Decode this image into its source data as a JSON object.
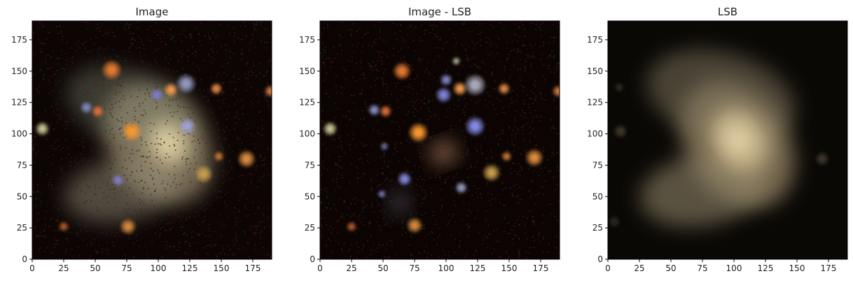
{
  "chart_data": [
    {
      "type": "image",
      "title": "Image",
      "xlim": [
        0,
        190
      ],
      "ylim": [
        0,
        190
      ],
      "xticks": [
        0,
        25,
        50,
        75,
        100,
        125,
        150,
        175
      ],
      "yticks": [
        0,
        25,
        50,
        75,
        100,
        125,
        150,
        175
      ],
      "description_colors": {
        "background": "#0c0504",
        "diffuse": "#b3a98a",
        "core": "#eadbaa"
      },
      "diffuse_components": [
        {
          "x": 100,
          "y": 92,
          "rx": 38,
          "ry": 52,
          "rotate": 35,
          "color": "#c9b88f",
          "opacity": 0.55
        },
        {
          "x": 80,
          "y": 120,
          "rx": 55,
          "ry": 30,
          "rotate": -20,
          "color": "#8f9a84",
          "opacity": 0.35
        },
        {
          "x": 70,
          "y": 55,
          "rx": 45,
          "ry": 25,
          "rotate": 10,
          "color": "#a59d84",
          "opacity": 0.45
        },
        {
          "x": 108,
          "y": 92,
          "rx": 15,
          "ry": 18,
          "rotate": 35,
          "color": "#f2e2b0",
          "opacity": 0.8
        }
      ],
      "sources": [
        {
          "x": 63,
          "y": 151,
          "r": 5,
          "color": "#e0782d"
        },
        {
          "x": 79,
          "y": 102,
          "r": 5,
          "color": "#f5962e"
        },
        {
          "x": 110,
          "y": 135,
          "r": 3.5,
          "color": "#f09a4c"
        },
        {
          "x": 99,
          "y": 131,
          "r": 3,
          "color": "#7b7ad8"
        },
        {
          "x": 122,
          "y": 140,
          "r": 5,
          "color": "#8f95b8"
        },
        {
          "x": 123,
          "y": 106,
          "r": 4,
          "color": "#9fa0d8"
        },
        {
          "x": 52,
          "y": 118,
          "r": 3,
          "color": "#e0703b"
        },
        {
          "x": 43,
          "y": 121,
          "r": 3,
          "color": "#7f88c0"
        },
        {
          "x": 8,
          "y": 104,
          "r": 3.5,
          "color": "#c9c48c"
        },
        {
          "x": 146,
          "y": 136,
          "r": 3,
          "color": "#e08a45"
        },
        {
          "x": 170,
          "y": 80,
          "r": 4.5,
          "color": "#d88a3d"
        },
        {
          "x": 136,
          "y": 68,
          "r": 4.5,
          "color": "#c49a4a"
        },
        {
          "x": 148,
          "y": 82,
          "r": 2.5,
          "color": "#c77a38"
        },
        {
          "x": 76,
          "y": 26,
          "r": 4,
          "color": "#d2883d"
        },
        {
          "x": 25,
          "y": 26,
          "r": 2.5,
          "color": "#b65b2a"
        },
        {
          "x": 189,
          "y": 134,
          "r": 3,
          "color": "#d07d3c"
        },
        {
          "x": 68,
          "y": 63,
          "r": 3,
          "color": "#7e80c4"
        }
      ]
    },
    {
      "type": "image",
      "title": "Image - LSB",
      "xlim": [
        0,
        190
      ],
      "ylim": [
        0,
        190
      ],
      "xticks": [
        0,
        25,
        50,
        75,
        100,
        125,
        150,
        175
      ],
      "yticks": [
        0,
        25,
        50,
        75,
        100,
        125,
        150,
        175
      ],
      "description_colors": {
        "background": "#0b0403"
      },
      "diffuse_components": [
        {
          "x": 98,
          "y": 85,
          "rx": 10,
          "ry": 8,
          "rotate": 20,
          "color": "#c9936a",
          "opacity": 0.75
        },
        {
          "x": 63,
          "y": 45,
          "rx": 7,
          "ry": 9,
          "rotate": 0,
          "color": "#8f9bb5",
          "opacity": 0.4
        }
      ],
      "sources": [
        {
          "x": 65,
          "y": 150,
          "r": 4.5,
          "color": "#e0782d"
        },
        {
          "x": 78,
          "y": 101,
          "r": 5,
          "color": "#f5962e"
        },
        {
          "x": 111,
          "y": 136,
          "r": 3.5,
          "color": "#f09a4c"
        },
        {
          "x": 98,
          "y": 131,
          "r": 4,
          "color": "#7f80d8"
        },
        {
          "x": 123,
          "y": 139,
          "r": 5.5,
          "color": "#a6a6b8"
        },
        {
          "x": 123,
          "y": 106,
          "r": 5,
          "color": "#8188e0"
        },
        {
          "x": 100,
          "y": 143,
          "r": 3,
          "color": "#7e86c8"
        },
        {
          "x": 52,
          "y": 118,
          "r": 3,
          "color": "#e0703b"
        },
        {
          "x": 43,
          "y": 119,
          "r": 3,
          "color": "#8890c4"
        },
        {
          "x": 8,
          "y": 104,
          "r": 3.5,
          "color": "#c9c48c"
        },
        {
          "x": 146,
          "y": 136,
          "r": 3,
          "color": "#e08a45"
        },
        {
          "x": 170,
          "y": 81,
          "r": 4.5,
          "color": "#d88a3d"
        },
        {
          "x": 136,
          "y": 69,
          "r": 4.5,
          "color": "#c49a4a"
        },
        {
          "x": 148,
          "y": 82,
          "r": 2.5,
          "color": "#c77a38"
        },
        {
          "x": 67,
          "y": 64,
          "r": 3.5,
          "color": "#8088d8"
        },
        {
          "x": 112,
          "y": 57,
          "r": 3,
          "color": "#8f9fc0"
        },
        {
          "x": 75,
          "y": 27,
          "r": 4,
          "color": "#d2883d"
        },
        {
          "x": 25,
          "y": 26,
          "r": 2.5,
          "color": "#b65b2a"
        },
        {
          "x": 49,
          "y": 52,
          "r": 2,
          "color": "#7a80c0"
        },
        {
          "x": 51,
          "y": 90,
          "r": 2,
          "color": "#6e78b0"
        },
        {
          "x": 189,
          "y": 134,
          "r": 3,
          "color": "#d07d3c"
        },
        {
          "x": 108,
          "y": 158,
          "r": 2,
          "color": "#b0b8a0"
        }
      ]
    },
    {
      "type": "image",
      "title": "LSB",
      "xlim": [
        0,
        190
      ],
      "ylim": [
        0,
        190
      ],
      "xticks": [
        0,
        25,
        50,
        75,
        100,
        125,
        150,
        175
      ],
      "yticks": [
        0,
        25,
        50,
        75,
        100,
        125,
        150,
        175
      ],
      "description_colors": {
        "background": "#0a0805"
      },
      "diffuse_components": [
        {
          "x": 103,
          "y": 92,
          "rx": 40,
          "ry": 55,
          "rotate": 35,
          "color": "#b9a47d",
          "opacity": 0.6
        },
        {
          "x": 90,
          "y": 130,
          "rx": 60,
          "ry": 35,
          "rotate": -15,
          "color": "#7d735c",
          "opacity": 0.55
        },
        {
          "x": 75,
          "y": 55,
          "rx": 50,
          "ry": 28,
          "rotate": 10,
          "color": "#8f8468",
          "opacity": 0.6
        },
        {
          "x": 105,
          "y": 95,
          "rx": 22,
          "ry": 28,
          "rotate": 35,
          "color": "#d9c596",
          "opacity": 0.7
        },
        {
          "x": 103,
          "y": 95,
          "rx": 10,
          "ry": 12,
          "rotate": 35,
          "color": "#f0e0b5",
          "opacity": 0.85
        }
      ],
      "sources": [
        {
          "x": 10,
          "y": 102,
          "r": 3.5,
          "color": "#3a3624"
        },
        {
          "x": 9,
          "y": 137,
          "r": 2.5,
          "color": "#2f2a1e"
        },
        {
          "x": 170,
          "y": 80,
          "r": 3.5,
          "color": "#3a3526"
        },
        {
          "x": 5,
          "y": 30,
          "r": 3,
          "color": "#2b261b"
        }
      ]
    }
  ]
}
